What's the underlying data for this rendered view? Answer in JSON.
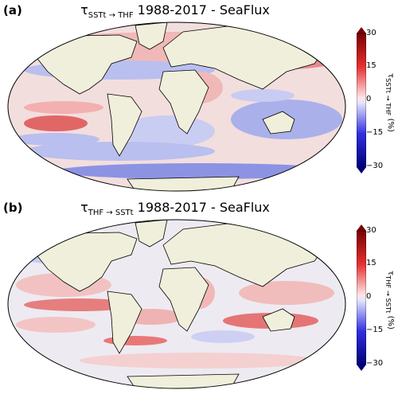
{
  "colors": {
    "land": "#efefdb",
    "ocean_base": "#eceef8",
    "pos_strong": "#ea6f70",
    "pos_weak": "#f6c0c0",
    "neg_strong": "#7f86e0",
    "neg_weak": "#c7cbf1",
    "contour": "#000000"
  },
  "colorbar": {
    "ticks": [
      "30",
      "15",
      "0",
      "−15",
      "−30"
    ],
    "unit": "(%)"
  },
  "panels": [
    {
      "label": "(a)",
      "title": {
        "prefix": "τ",
        "sub": "SSTt → THF",
        "suffix": " 1988-2017 - SeaFlux"
      },
      "cbar_label": {
        "prefix": "τ",
        "sub": "SSTt → THF"
      },
      "anomaly_icon": "red-blue-anomaly-patches"
    },
    {
      "label": "(b)",
      "title": {
        "prefix": "τ",
        "sub": "THF → SSTt",
        "suffix": " 1988-2017 - SeaFlux"
      },
      "cbar_label": {
        "prefix": "τ",
        "sub": "THF → SSTt"
      },
      "anomaly_icon": "red-anomaly-patches"
    }
  ]
}
